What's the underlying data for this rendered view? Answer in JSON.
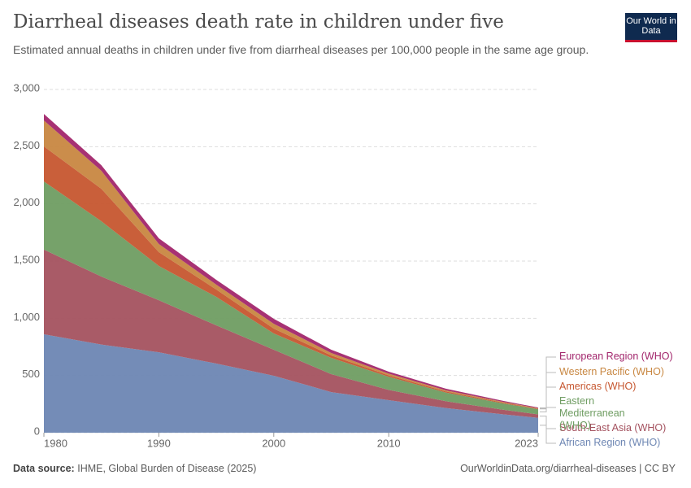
{
  "chart_data": {
    "type": "stacked-area",
    "title": "Diarrheal diseases death rate in children under five",
    "subtitle": "Estimated annual deaths in children under five from diarrheal diseases per 100,000 people in the same age group.",
    "logo": "Our World in Data",
    "source_label": "Data source:",
    "source": "IHME, Global Burden of Disease (2025)",
    "url": "OurWorldinData.org/diarrheal-diseases | CC BY",
    "x": [
      1980,
      1985,
      1990,
      1995,
      2000,
      2005,
      2010,
      2015,
      2020,
      2023
    ],
    "series": [
      {
        "name": "African Region (WHO)",
        "color": "#6d86b3",
        "values": [
          860,
          770,
          703,
          604,
          498,
          355,
          284,
          215,
          160,
          130
        ]
      },
      {
        "name": "South-East Asia (WHO)",
        "color": "#a4525f",
        "values": [
          740,
          595,
          455,
          334,
          227,
          157,
          90,
          60,
          40,
          30
        ]
      },
      {
        "name": "Eastern Mediterranean (WHO)",
        "color": "#6f9d62",
        "values": [
          596,
          483,
          299,
          249,
          142,
          142,
          115,
          75,
          55,
          45
        ]
      },
      {
        "name": "Americas (WHO)",
        "color": "#c6562f",
        "values": [
          306,
          284,
          121,
          64,
          43,
          21,
          12,
          10,
          7,
          5
        ]
      },
      {
        "name": "Western Pacific (WHO)",
        "color": "#c88741",
        "values": [
          227,
          157,
          71,
          43,
          42,
          22,
          15,
          10,
          6,
          4
        ]
      },
      {
        "name": "European Region (WHO)",
        "color": "#a2266c",
        "values": [
          57,
          49,
          50,
          42,
          43,
          28,
          17,
          14,
          9,
          6
        ]
      }
    ],
    "xlim": [
      1980,
      2023
    ],
    "xticks": [
      1980,
      1990,
      2000,
      2010,
      2023
    ],
    "ylim": [
      0,
      3000
    ],
    "yticks": [
      0,
      500,
      {
        "value": 1000,
        "label": "1,000"
      },
      {
        "value": 1500,
        "label": "1,500"
      },
      {
        "value": 2000,
        "label": "2,000"
      },
      {
        "value": 2500,
        "label": "2,500"
      },
      {
        "value": 3000,
        "label": "3,000"
      }
    ],
    "grid": true
  }
}
